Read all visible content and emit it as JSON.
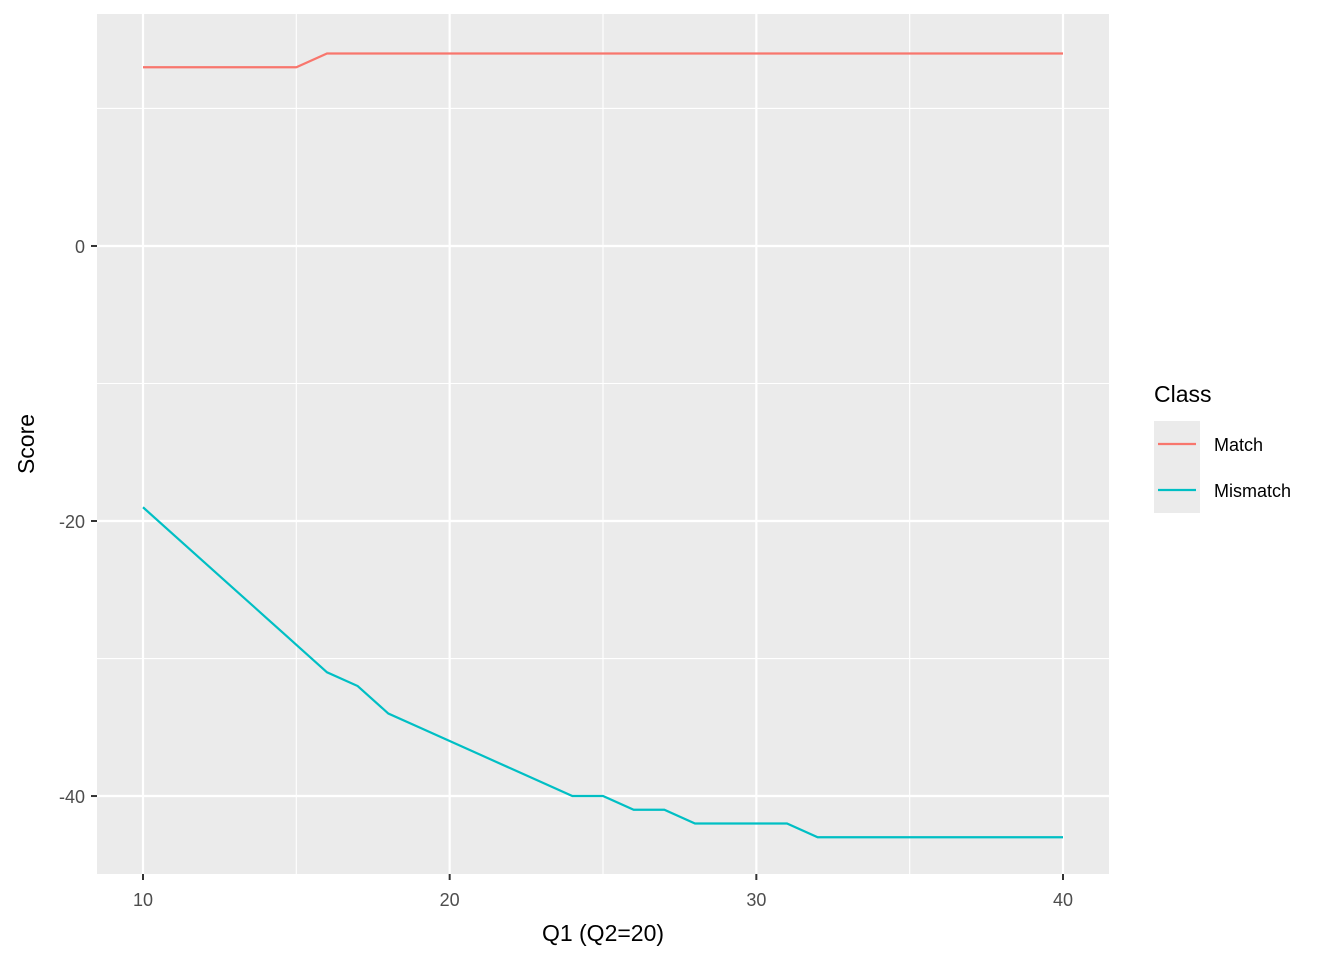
{
  "chart_data": {
    "type": "line",
    "title": "",
    "xlabel": "Q1 (Q2=20)",
    "ylabel": "Score",
    "xlim": [
      8.5,
      41.5
    ],
    "ylim": [
      -45.67,
      16.87
    ],
    "x_ticks": [
      10,
      20,
      30,
      40
    ],
    "x_minor": [
      15,
      25,
      35
    ],
    "y_ticks": [
      0,
      -20,
      -40
    ],
    "y_minor": [
      10,
      -10,
      -30
    ],
    "grid": true,
    "legend": {
      "title": "Class",
      "placement": "right"
    },
    "x": [
      10,
      11,
      12,
      13,
      14,
      15,
      16,
      17,
      18,
      19,
      20,
      21,
      22,
      23,
      24,
      25,
      26,
      27,
      28,
      29,
      30,
      31,
      32,
      33,
      34,
      35,
      36,
      37,
      38,
      39,
      40
    ],
    "series": [
      {
        "name": "Match",
        "color": "#F8766D",
        "values": [
          13,
          13,
          13,
          13,
          13,
          13,
          14,
          14,
          14,
          14,
          14,
          14,
          14,
          14,
          14,
          14,
          14,
          14,
          14,
          14,
          14,
          14,
          14,
          14,
          14,
          14,
          14,
          14,
          14,
          14,
          14
        ]
      },
      {
        "name": "Mismatch",
        "color": "#00BFC4",
        "values": [
          -19,
          -21,
          -23,
          -25,
          -27,
          -29,
          -31,
          -32,
          -34,
          -35,
          -36,
          -37,
          -38,
          -39,
          -40,
          -40,
          -41,
          -41,
          -42,
          -42,
          -42,
          -42,
          -43,
          -43,
          -43,
          -43,
          -43,
          -43,
          -43,
          -43,
          -43
        ]
      }
    ]
  }
}
